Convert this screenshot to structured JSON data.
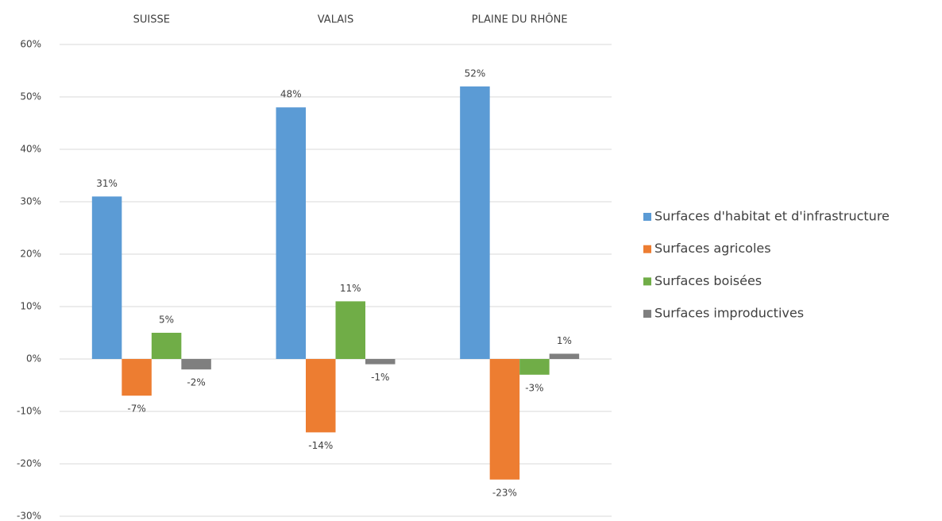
{
  "chart_data": {
    "type": "bar",
    "categories": [
      "SUISSE",
      "VALAIS",
      "PLAINE DU RHÔNE"
    ],
    "series": [
      {
        "name": "Surfaces d'habitat et d'infrastructure",
        "color": "#5b9bd5",
        "values": [
          31,
          48,
          52
        ],
        "value_labels": [
          "31%",
          "48%",
          "52%"
        ]
      },
      {
        "name": "Surfaces agricoles",
        "color": "#ed7d31",
        "values": [
          -7,
          -14,
          -23
        ],
        "value_labels": [
          "-7%",
          "-14%",
          "-23%"
        ]
      },
      {
        "name": "Surfaces boisées",
        "color": "#70ad47",
        "values": [
          5,
          11,
          -3
        ],
        "value_labels": [
          "5%",
          "11%",
          "-3%"
        ]
      },
      {
        "name": "Surfaces improductives",
        "color": "#7f7f7f",
        "values": [
          -2,
          -1,
          1
        ],
        "value_labels": [
          "-2%",
          "-1%",
          "1%"
        ]
      }
    ],
    "ylim": [
      -30,
      60
    ],
    "yticks": [
      {
        "value": -30,
        "label": "-30%"
      },
      {
        "value": -20,
        "label": "-20%"
      },
      {
        "value": -10,
        "label": "-10%"
      },
      {
        "value": 0,
        "label": "0%"
      },
      {
        "value": 10,
        "label": "10%"
      },
      {
        "value": 20,
        "label": "20%"
      },
      {
        "value": 30,
        "label": "30%"
      },
      {
        "value": 40,
        "label": "40%"
      },
      {
        "value": 50,
        "label": "50%"
      },
      {
        "value": 60,
        "label": "60%"
      }
    ],
    "grid": true,
    "legend": "right"
  }
}
